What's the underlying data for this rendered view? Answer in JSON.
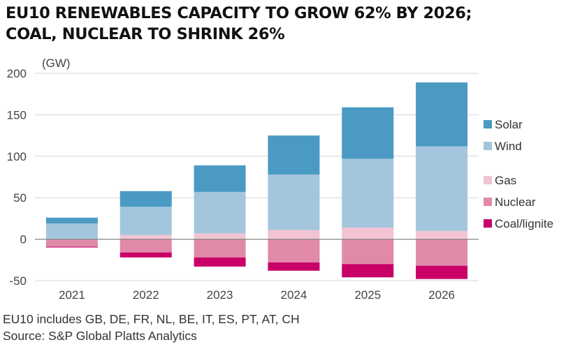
{
  "title_lines": [
    "EU10 RENEWABLES CAPACITY TO GROW 62% BY 2026;",
    "COAL, NUCLEAR TO SHRINK 26%"
  ],
  "footnotes": [
    "EU10 includes GB, DE, FR, NL, BE, IT, ES, PT, AT, CH",
    "Source: S&P Global Platts Analytics"
  ],
  "chart_data": {
    "type": "bar",
    "stacked": true,
    "ylabel": "(GW)",
    "ylim": [
      -50,
      200
    ],
    "yticks": [
      -50,
      0,
      50,
      100,
      150,
      200
    ],
    "grid": true,
    "legend_position": "right",
    "categories": [
      "2021",
      "2022",
      "2023",
      "2024",
      "2025",
      "2026"
    ],
    "positive_series": [
      {
        "name": "Wind",
        "color": "#a3c6de",
        "values": [
          19,
          34,
          50,
          67,
          83,
          102
        ]
      },
      {
        "name": "Solar",
        "color": "#4b9ac4",
        "values": [
          7,
          19,
          32,
          47,
          62,
          77
        ]
      }
    ],
    "positive_base_series": [
      {
        "name": "Gas",
        "color": "#f2c4d3",
        "values": [
          0,
          5,
          7,
          11,
          14,
          10
        ]
      }
    ],
    "negative_series": [
      {
        "name": "Nuclear",
        "color": "#e08aa8",
        "values": [
          -9,
          -16,
          -22,
          -28,
          -30,
          -32
        ]
      },
      {
        "name": "Coal/lignite",
        "color": "#c90068",
        "values": [
          -1,
          -6,
          -11,
          -10,
          -16,
          -16
        ]
      }
    ],
    "legend": [
      {
        "name": "Solar",
        "color": "#4b9ac4"
      },
      {
        "name": "Wind",
        "color": "#a3c6de"
      },
      {
        "name": "Gas",
        "color": "#f2c4d3"
      },
      {
        "name": "Nuclear",
        "color": "#e08aa8"
      },
      {
        "name": "Coal/lignite",
        "color": "#c90068"
      }
    ]
  }
}
